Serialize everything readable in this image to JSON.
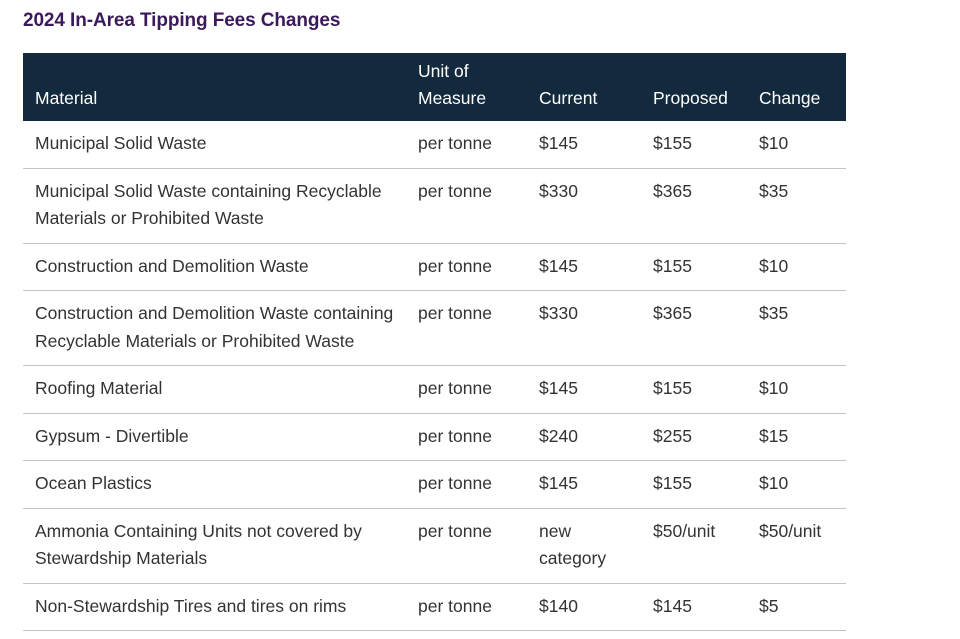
{
  "title": "2024 In-Area Tipping Fees Changes",
  "table": {
    "headers": {
      "material": "Material",
      "unit_line1": "Unit of",
      "unit_line2": "Measure",
      "current": "Current",
      "proposed": "Proposed",
      "change": "Change"
    },
    "rows": [
      {
        "material": "Municipal Solid Waste",
        "unit": "per tonne",
        "current": "$145",
        "proposed": "$155",
        "change": "$10"
      },
      {
        "material": "Municipal Solid Waste containing Recyclable Materials or Prohibited Waste",
        "unit": "per tonne",
        "current": "$330",
        "proposed": "$365",
        "change": "$35"
      },
      {
        "material": "Construction and Demolition Waste",
        "unit": "per tonne",
        "current": "$145",
        "proposed": "$155",
        "change": "$10"
      },
      {
        "material": "Construction and Demolition Waste containing Recyclable Materials or Prohibited Waste",
        "unit": "per tonne",
        "current": "$330",
        "proposed": "$365",
        "change": "$35"
      },
      {
        "material": "Roofing Material",
        "unit": "per tonne",
        "current": "$145",
        "proposed": "$155",
        "change": "$10"
      },
      {
        "material": "Gypsum - Divertible",
        "unit": "per tonne",
        "current": "$240",
        "proposed": "$255",
        "change": "$15"
      },
      {
        "material": "Ocean Plastics",
        "unit": "per tonne",
        "current": "$145",
        "proposed": "$155",
        "change": "$10"
      },
      {
        "material": "Ammonia Containing Units not covered by Stewardship Materials",
        "unit": "per tonne",
        "current": "new category",
        "proposed": "$50/unit",
        "change": "$50/unit"
      },
      {
        "material": "Non-Stewardship Tires and tires on rims",
        "unit": "per tonne",
        "current": "$140",
        "proposed": "$145",
        "change": "$5"
      }
    ]
  },
  "colors": {
    "title": "#3b1a5a",
    "header_background": "#13293d",
    "header_text": "#ffffff",
    "body_text": "#333333",
    "row_divider": "#c4c4c4"
  }
}
